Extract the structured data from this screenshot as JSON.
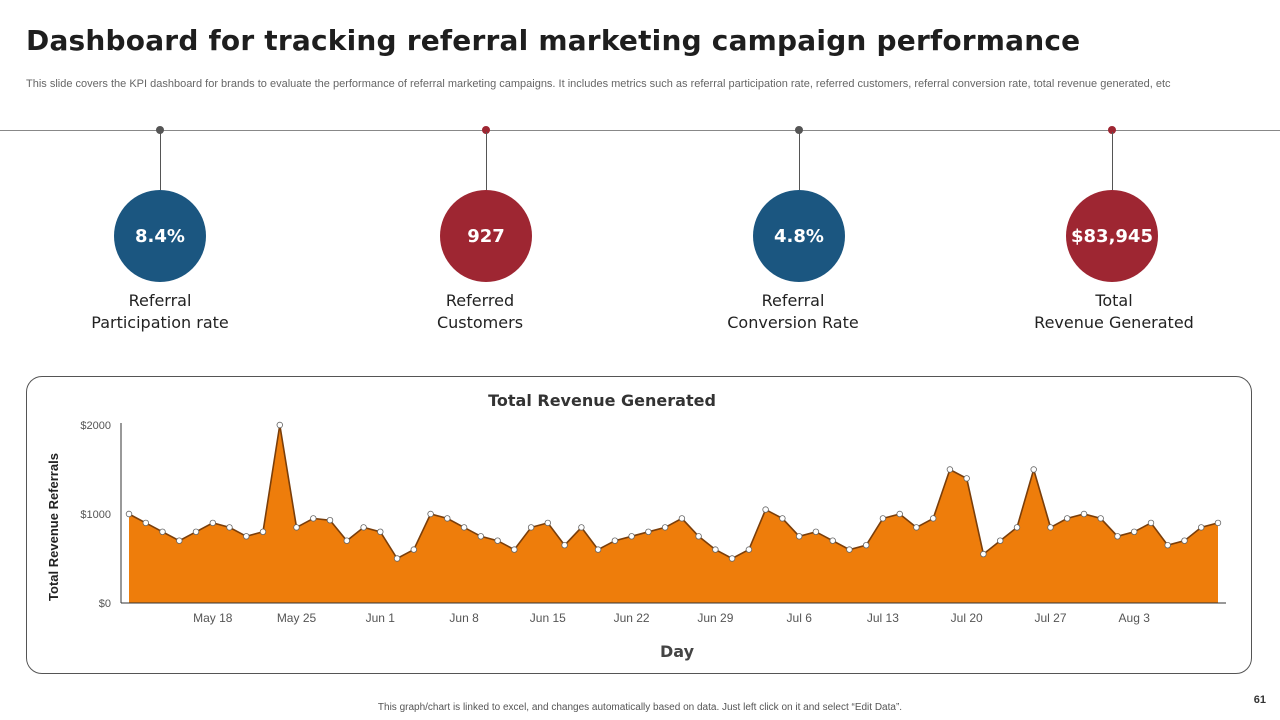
{
  "slide": {
    "title": "Dashboard for tracking referral marketing campaign performance",
    "subtitle": "This slide covers the KPI dashboard for brands to evaluate the performance of referral marketing campaigns. It includes metrics such as referral participation rate, referred customers, referral conversion rate, total revenue generated, etc",
    "footer_note": "This graph/chart is linked to excel, and changes automatically based on data. Just left click on it and select “Edit Data”.",
    "page_number": "61"
  },
  "colors": {
    "blue": "#1b5680",
    "red": "#9e2632",
    "dark_dot": "#555555",
    "area_fill": "#ee7d0b",
    "area_stroke": "#7a3e0a"
  },
  "kpis": [
    {
      "value": "8.4%",
      "label_line1": "Referral",
      "label_line2": "Participation rate",
      "color": "#1b5680",
      "dot_color": "#555555"
    },
    {
      "value": "927",
      "label_line1": "Referred",
      "label_line2": "Customers",
      "color": "#9e2632",
      "dot_color": "#9e2632"
    },
    {
      "value": "4.8%",
      "label_line1": "Referral",
      "label_line2": "Conversion Rate",
      "color": "#1b5680",
      "dot_color": "#555555"
    },
    {
      "value": "$83,945",
      "label_line1": "Total",
      "label_line2": "Revenue Generated",
      "color": "#9e2632",
      "dot_color": "#9e2632"
    }
  ],
  "chart_data": {
    "type": "area",
    "title": "Total Revenue Generated",
    "xlabel": "Day",
    "ylabel": "Total Revenue Referrals",
    "ylim": [
      0,
      2000
    ],
    "y_ticks": [
      0,
      1000,
      2000
    ],
    "y_tick_labels": [
      "$0",
      "$1000",
      "$2000"
    ],
    "x_tick_labels": [
      "May 18",
      "May 25",
      "Jun 1",
      "Jun 8",
      "Jun 15",
      "Jun 22",
      "Jun 29",
      "Jul 6",
      "Jul 13",
      "Jul 20",
      "Jul 27",
      "Aug 3"
    ],
    "x_tick_index": [
      5,
      10,
      15,
      20,
      25,
      30,
      35,
      40,
      45,
      50,
      55,
      60
    ],
    "start_date": "May 13",
    "series": [
      {
        "name": "Total Revenue Generated",
        "values": [
          1000,
          900,
          800,
          700,
          800,
          900,
          850,
          750,
          800,
          2000,
          850,
          950,
          930,
          700,
          850,
          800,
          500,
          600,
          1000,
          950,
          850,
          750,
          700,
          600,
          850,
          900,
          650,
          850,
          600,
          700,
          750,
          800,
          850,
          950,
          750,
          600,
          500,
          600,
          1050,
          950,
          750,
          800,
          700,
          600,
          650,
          950,
          1000,
          850,
          950,
          1500,
          1400,
          550,
          700,
          850,
          1500,
          850,
          950,
          1000,
          950,
          750,
          800,
          900,
          650,
          700,
          850,
          900
        ]
      }
    ]
  }
}
